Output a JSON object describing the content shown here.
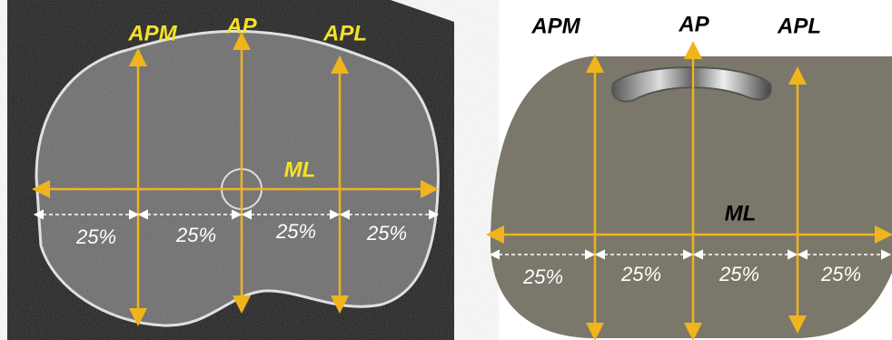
{
  "panels": [
    {
      "measures": [
        "APM",
        "AP",
        "APL",
        "ML"
      ],
      "quarters": [
        "25%",
        "25%",
        "25%",
        "25%"
      ]
    },
    {
      "measures": [
        "APM",
        "AP",
        "APL",
        "ML"
      ],
      "quarters": [
        "25%",
        "25%",
        "25%",
        "25%"
      ]
    }
  ]
}
